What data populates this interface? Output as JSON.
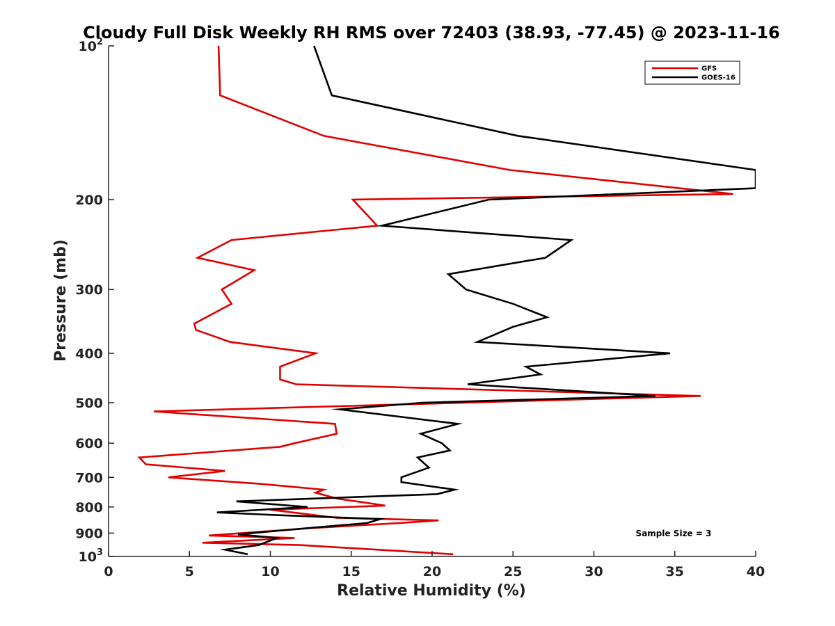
{
  "chart_data": {
    "type": "line",
    "title": "Cloudy Full Disk Weekly RH RMS over 72403 (38.93, -77.45) @ 2023-11-16",
    "xlabel": "Relative Humidity (%)",
    "ylabel": "Pressure (mb)",
    "xlim": [
      0,
      40
    ],
    "ylim": [
      100,
      1000
    ],
    "y_scale": "log",
    "y_reversed": true,
    "grid": false,
    "legend_position": "top-right",
    "xticks": [
      "0",
      "5",
      "10",
      "15",
      "20",
      "25",
      "30",
      "35",
      "40"
    ],
    "yticks": [
      {
        "value": 100,
        "base": "10",
        "exp": "2"
      },
      {
        "value": 200,
        "label": "200"
      },
      {
        "value": 300,
        "label": "300"
      },
      {
        "value": 400,
        "label": "400"
      },
      {
        "value": 500,
        "label": "500"
      },
      {
        "value": 600,
        "label": "600"
      },
      {
        "value": 700,
        "label": "700"
      },
      {
        "value": 800,
        "label": "800"
      },
      {
        "value": 900,
        "label": "900"
      },
      {
        "value": 1000,
        "base": "10",
        "exp": "3"
      }
    ],
    "annotation": "Sample Size = 3",
    "series": [
      {
        "name": "GFS",
        "color": "#e00000",
        "points": [
          [
            6.8,
            100
          ],
          [
            6.9,
            125
          ],
          [
            13.3,
            150
          ],
          [
            24.8,
            175
          ],
          [
            38.6,
            195
          ],
          [
            15.1,
            200
          ],
          [
            16.6,
            225
          ],
          [
            7.6,
            240
          ],
          [
            5.5,
            260
          ],
          [
            9.0,
            275
          ],
          [
            7.0,
            300
          ],
          [
            7.6,
            320
          ],
          [
            5.3,
            350
          ],
          [
            5.4,
            360
          ],
          [
            7.5,
            380
          ],
          [
            12.8,
            400
          ],
          [
            10.6,
            425
          ],
          [
            10.6,
            450
          ],
          [
            11.6,
            460
          ],
          [
            36.6,
            485
          ],
          [
            2.8,
            520
          ],
          [
            14.0,
            550
          ],
          [
            14.1,
            575
          ],
          [
            11.5,
            600
          ],
          [
            10.6,
            610
          ],
          [
            1.9,
            640
          ],
          [
            2.3,
            660
          ],
          [
            7.2,
            680
          ],
          [
            3.7,
            700
          ],
          [
            9.2,
            720
          ],
          [
            13.3,
            740
          ],
          [
            12.8,
            750
          ],
          [
            14.1,
            770
          ],
          [
            17.1,
            795
          ],
          [
            10.0,
            810
          ],
          [
            14.1,
            840
          ],
          [
            20.4,
            850
          ],
          [
            18.0,
            860
          ],
          [
            12.5,
            880
          ],
          [
            6.2,
            910
          ],
          [
            11.5,
            920
          ],
          [
            5.8,
            940
          ],
          [
            11.8,
            950
          ],
          [
            21.3,
            990
          ]
        ]
      },
      {
        "name": "GOES-16",
        "color": "#000000",
        "points": [
          [
            12.7,
            100
          ],
          [
            13.8,
            125
          ],
          [
            25.3,
            150
          ],
          [
            40.0,
            175
          ],
          [
            40.0,
            190
          ],
          [
            23.5,
            200
          ],
          [
            16.9,
            225
          ],
          [
            28.6,
            240
          ],
          [
            27.0,
            260
          ],
          [
            21.0,
            280
          ],
          [
            22.1,
            300
          ],
          [
            25.0,
            320
          ],
          [
            27.1,
            340
          ],
          [
            25.0,
            355
          ],
          [
            22.8,
            380
          ],
          [
            34.7,
            400
          ],
          [
            25.8,
            425
          ],
          [
            26.7,
            440
          ],
          [
            22.2,
            460
          ],
          [
            33.8,
            485
          ],
          [
            19.4,
            500
          ],
          [
            14.3,
            515
          ],
          [
            21.6,
            550
          ],
          [
            19.3,
            575
          ],
          [
            20.6,
            600
          ],
          [
            21.1,
            620
          ],
          [
            19.1,
            640
          ],
          [
            19.8,
            670
          ],
          [
            18.1,
            700
          ],
          [
            18.1,
            715
          ],
          [
            21.4,
            740
          ],
          [
            20.3,
            755
          ],
          [
            7.9,
            780
          ],
          [
            12.3,
            800
          ],
          [
            6.7,
            820
          ],
          [
            10.4,
            830
          ],
          [
            16.8,
            845
          ],
          [
            16.0,
            860
          ],
          [
            12.3,
            880
          ],
          [
            8.0,
            905
          ],
          [
            10.4,
            920
          ],
          [
            9.3,
            950
          ],
          [
            7.2,
            970
          ],
          [
            8.6,
            990
          ]
        ]
      }
    ]
  }
}
